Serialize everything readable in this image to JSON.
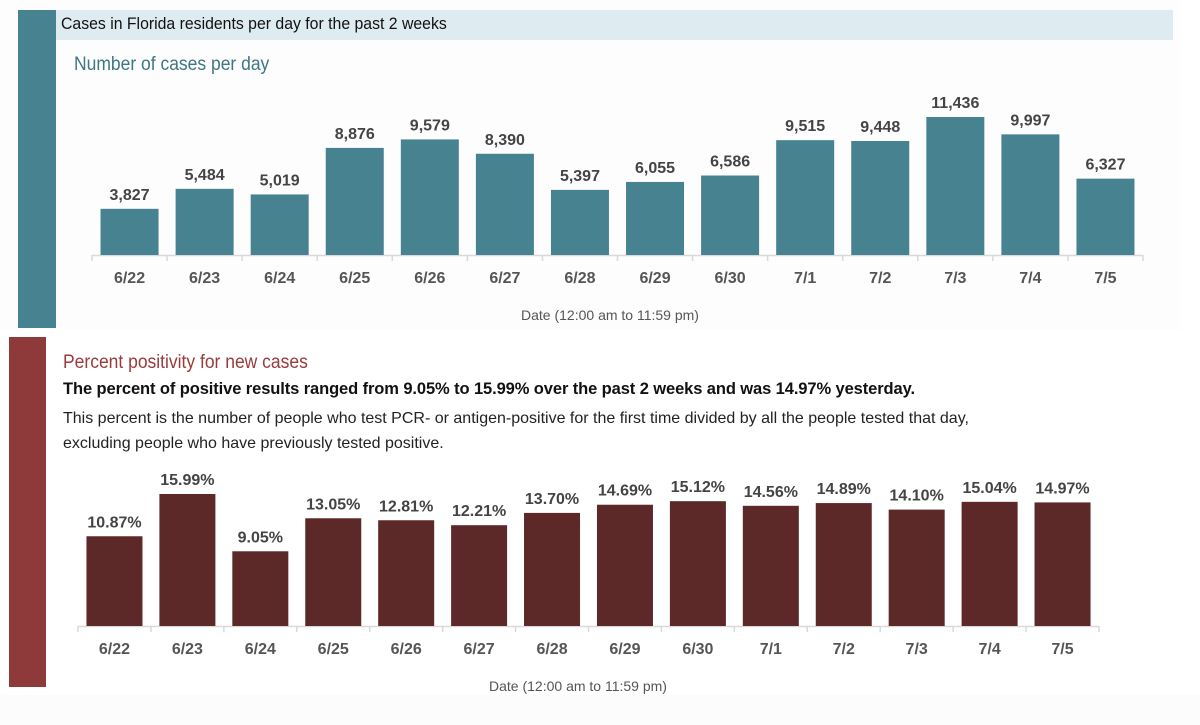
{
  "top_panel": {
    "title": "Cases in Florida residents per day for the past 2 weeks",
    "subtitle": "Number of cases per day",
    "colors": {
      "accent": "#46828f",
      "title_band": "#deecf1",
      "bar": "#46828f",
      "subtitle": "#3e7683"
    }
  },
  "bottom_panel": {
    "subtitle": "Percent positivity for new cases",
    "summary": "The percent of positive results ranged from 9.05% to 15.99% over the past 2 weeks and was 14.97% yesterday.",
    "description_line1": "This percent is the number of people who test PCR- or antigen-positive for the first time divided by all the people tested that day,",
    "description_line2": "excluding people who have previously tested positive.",
    "colors": {
      "accent": "#8e3a3a",
      "bar": "#5c2828",
      "subtitle": "#9a3a3a"
    }
  },
  "chart_data": [
    {
      "type": "bar",
      "title": "Number of cases per day",
      "xlabel": "Date (12:00 am to 11:59 pm)",
      "ylabel": "",
      "categories": [
        "6/22",
        "6/23",
        "6/24",
        "6/25",
        "6/26",
        "6/27",
        "6/28",
        "6/29",
        "6/30",
        "7/1",
        "7/2",
        "7/3",
        "7/4",
        "7/5"
      ],
      "values": [
        3827,
        5484,
        5019,
        8876,
        9579,
        8390,
        5397,
        6055,
        6586,
        9515,
        9448,
        11436,
        9997,
        6327
      ],
      "value_labels": [
        "3,827",
        "5,484",
        "5,019",
        "8,876",
        "9,579",
        "8,390",
        "5,397",
        "6,055",
        "6,586",
        "9,515",
        "9,448",
        "11,436",
        "9,997",
        "6,327"
      ],
      "ylim": [
        0,
        11436
      ],
      "grid": false,
      "legend": "none"
    },
    {
      "type": "bar",
      "title": "Percent positivity for new cases",
      "xlabel": "Date (12:00 am to 11:59 pm)",
      "ylabel": "",
      "categories": [
        "6/22",
        "6/23",
        "6/24",
        "6/25",
        "6/26",
        "6/27",
        "6/28",
        "6/29",
        "6/30",
        "7/1",
        "7/2",
        "7/3",
        "7/4",
        "7/5"
      ],
      "values": [
        10.87,
        15.99,
        9.05,
        13.05,
        12.81,
        12.21,
        13.7,
        14.69,
        15.12,
        14.56,
        14.89,
        14.1,
        15.04,
        14.97
      ],
      "value_labels": [
        "10.87%",
        "15.99%",
        "9.05%",
        "13.05%",
        "12.81%",
        "12.21%",
        "13.70%",
        "14.69%",
        "15.12%",
        "14.56%",
        "14.89%",
        "14.10%",
        "15.04%",
        "14.97%"
      ],
      "ylim": [
        0,
        15.99
      ],
      "grid": false,
      "legend": "none"
    }
  ]
}
